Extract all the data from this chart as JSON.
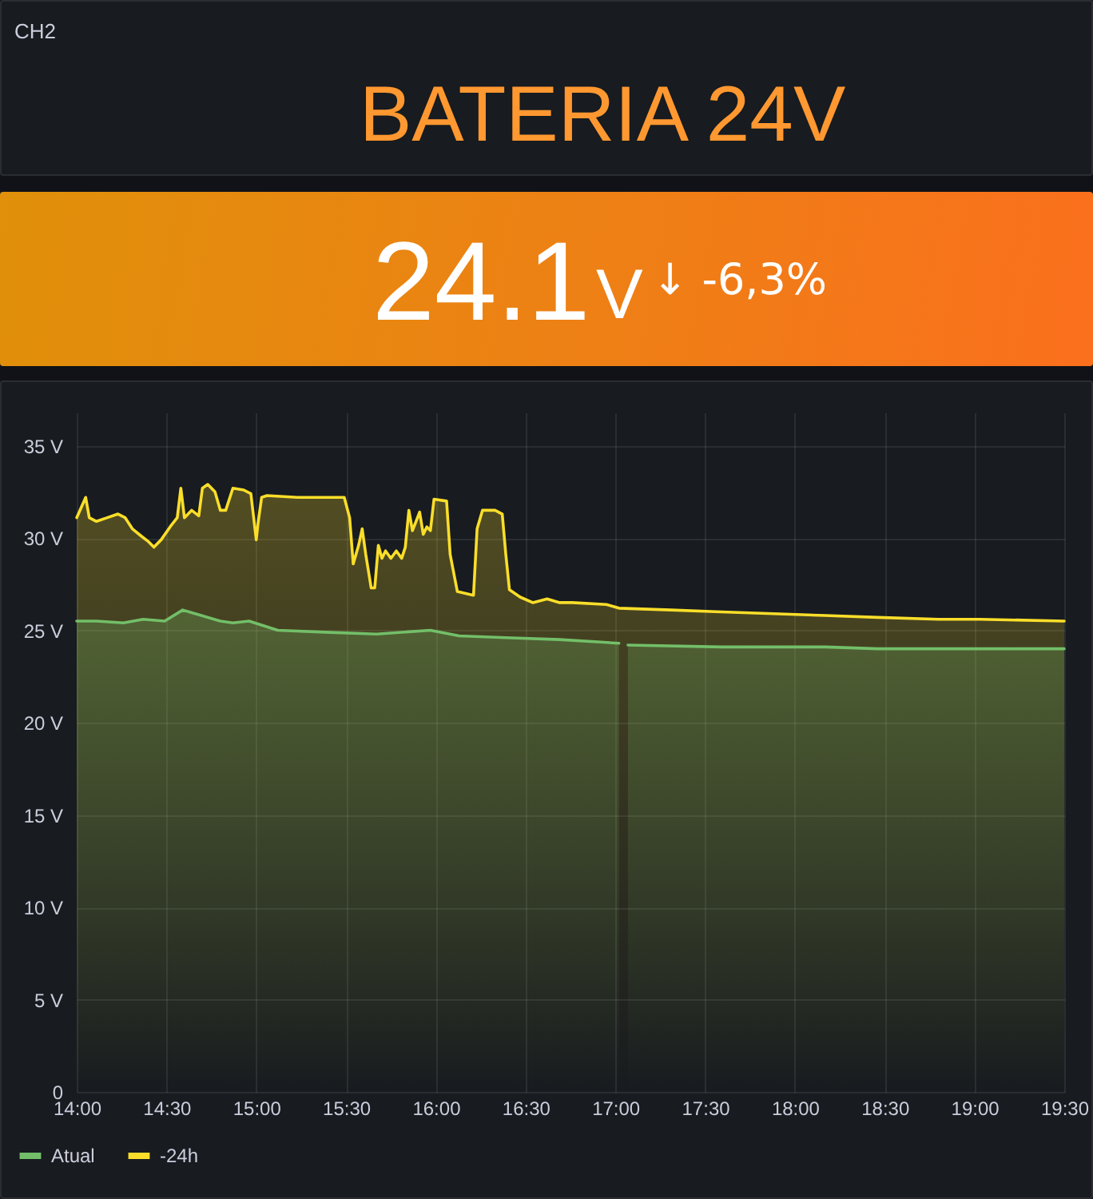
{
  "chart_data": [
    {
      "type": "other",
      "title": "CH2",
      "annotations": [
        "BATERIA 24V"
      ]
    },
    {
      "type": "other",
      "annotations": [
        "24.1",
        "V",
        "↓ -6,3%"
      ]
    },
    {
      "type": "area",
      "xlim": [
        14,
        19.5
      ],
      "xticks": [
        {
          "value": 14,
          "label": "14:00"
        },
        {
          "value": 14.5,
          "label": "14:30"
        },
        {
          "value": 15,
          "label": "15:00"
        },
        {
          "value": 15.5,
          "label": "15:30"
        },
        {
          "value": 16,
          "label": "16:00"
        },
        {
          "value": 16.5,
          "label": "16:30"
        },
        {
          "value": 17,
          "label": "17:00"
        },
        {
          "value": 17.5,
          "label": "17:30"
        },
        {
          "value": 18,
          "label": "18:00"
        },
        {
          "value": 18.5,
          "label": "18:30"
        },
        {
          "value": 19,
          "label": "19:00"
        },
        {
          "value": 19.5,
          "label": "19:30"
        }
      ],
      "ylim": [
        0,
        36.8
      ],
      "yticks": [
        0,
        {
          "value": 5,
          "label": "5 V"
        },
        {
          "value": 10,
          "label": "10 V"
        },
        {
          "value": 15,
          "label": "15 V"
        },
        {
          "value": 20,
          "label": "20 V"
        },
        {
          "value": 25,
          "label": "25 V"
        },
        {
          "value": 30,
          "label": "30 V"
        },
        {
          "value": 35,
          "label": "35 V"
        }
      ],
      "grid": true,
      "legend": "bottom",
      "series": [
        {
          "name": "Atual",
          "color": "#73bf69",
          "x": [
            14,
            14.11,
            14.26,
            14.37,
            14.49,
            14.59,
            14.66,
            14.8,
            14.87,
            14.96,
            15.12,
            15.38,
            15.67,
            15.97,
            16.13,
            16.39,
            16.69,
            17.02,
            17.05,
            17.07,
            17.59,
            18.17,
            18.46,
            19.03,
            19.5
          ],
          "values": [
            25.5,
            25.5,
            25.4,
            25.6,
            25.5,
            26.1,
            25.9,
            25.5,
            25.4,
            25.5,
            25.0,
            24.9,
            24.8,
            25.0,
            24.7,
            24.6,
            24.5,
            24.3,
            null,
            24.2,
            24.1,
            24.1,
            24.0,
            24.0,
            24.0
          ]
        },
        {
          "name": "-24h",
          "color": "#fade2a",
          "x": [
            14,
            14.05,
            14.07,
            14.11,
            14.17,
            14.23,
            14.27,
            14.31,
            14.36,
            14.4,
            14.43,
            14.47,
            14.52,
            14.56,
            14.58,
            14.6,
            14.64,
            14.68,
            14.7,
            14.73,
            14.77,
            14.8,
            14.83,
            14.87,
            14.93,
            14.97,
            15,
            15.01,
            15.03,
            15.06,
            15.23,
            15.49,
            15.52,
            15.54,
            15.57,
            15.59,
            15.61,
            15.64,
            15.66,
            15.68,
            15.7,
            15.72,
            15.75,
            15.78,
            15.81,
            15.83,
            15.85,
            15.87,
            15.91,
            15.93,
            15.95,
            15.97,
            15.99,
            16.06,
            16.08,
            16.12,
            16.21,
            16.23,
            16.26,
            16.33,
            16.37,
            16.39,
            16.41,
            16.47,
            16.54,
            16.62,
            16.69,
            16.76,
            16.95,
            17.02,
            17.31,
            17.59,
            17.88,
            18.17,
            18.46,
            18.8,
            19.03,
            19.5
          ],
          "values": [
            31.1,
            32.2,
            31.1,
            30.9,
            31.1,
            31.3,
            31.1,
            30.5,
            30.1,
            29.8,
            29.5,
            29.9,
            30.6,
            31.1,
            32.7,
            31.1,
            31.5,
            31.2,
            32.7,
            32.9,
            32.5,
            31.5,
            31.5,
            32.7,
            32.6,
            32.4,
            29.9,
            30.8,
            32.2,
            32.3,
            32.2,
            32.2,
            31.1,
            28.6,
            29.6,
            30.5,
            29.1,
            27.3,
            27.3,
            29.6,
            28.9,
            29.3,
            28.9,
            29.3,
            28.9,
            29.5,
            31.5,
            30.4,
            31.4,
            30.2,
            30.6,
            30.4,
            32.1,
            32.0,
            29.1,
            27.1,
            26.9,
            30.5,
            31.5,
            31.5,
            31.3,
            29.1,
            27.2,
            26.8,
            26.5,
            26.7,
            26.5,
            26.5,
            26.4,
            26.2,
            26.1,
            26.0,
            25.9,
            25.8,
            25.7,
            25.6,
            25.6,
            25.5
          ]
        }
      ]
    }
  ]
}
